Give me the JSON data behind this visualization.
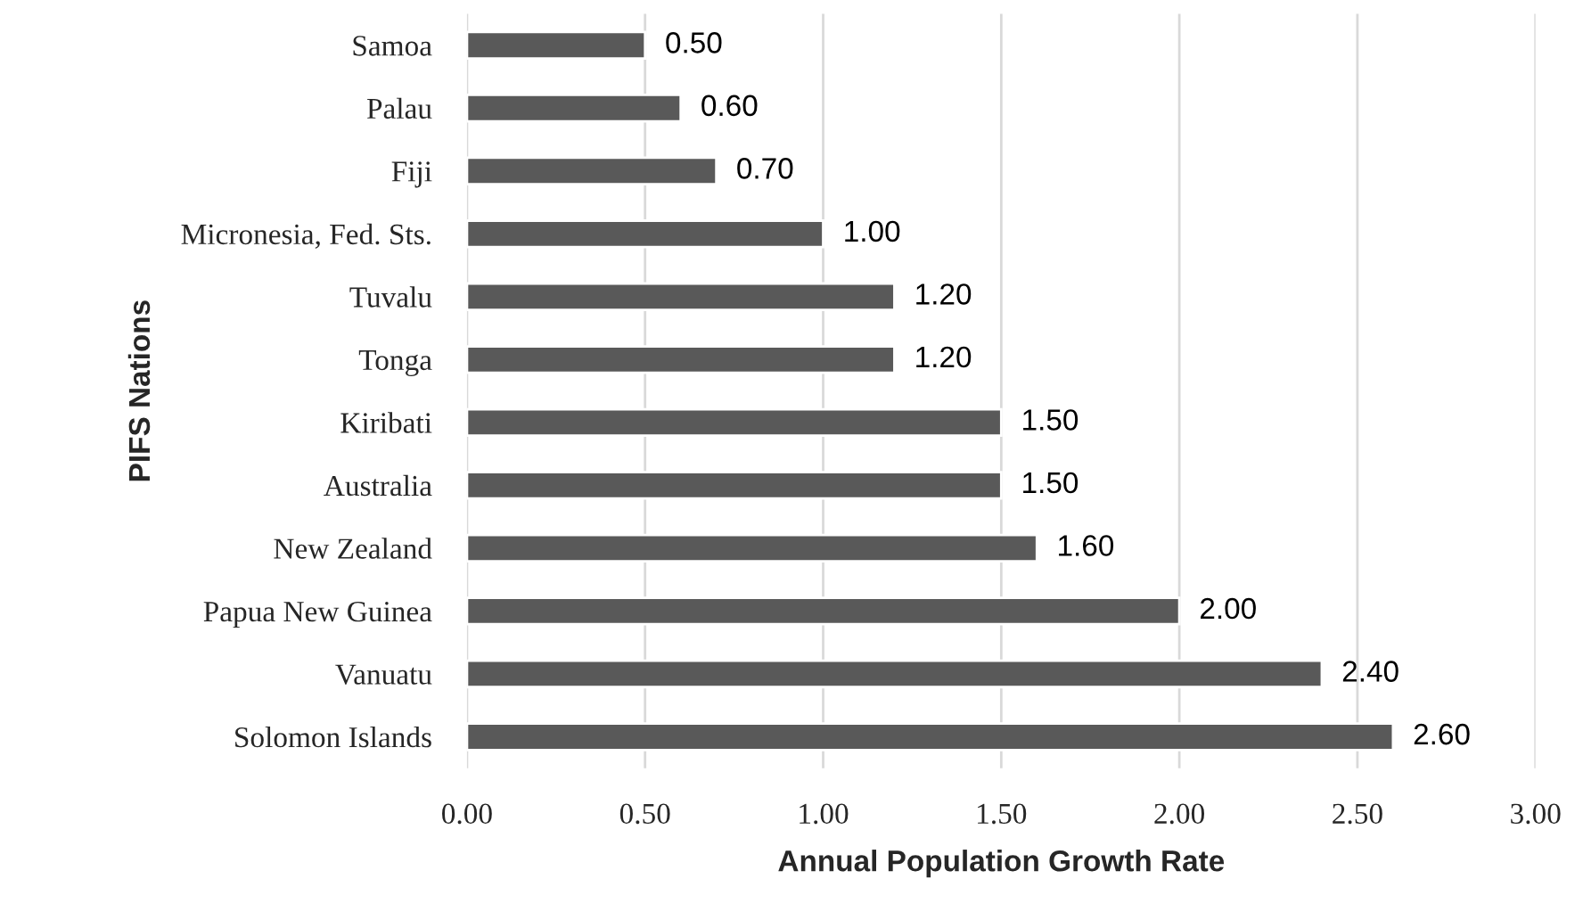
{
  "chart_data": {
    "type": "bar",
    "orientation": "horizontal",
    "xlabel": "Annual Population Growth Rate",
    "ylabel": "PIFS Nations",
    "categories": [
      "Samoa",
      "Palau",
      "Fiji",
      "Micronesia, Fed. Sts.",
      "Tuvalu",
      "Tonga",
      "Kiribati",
      "Australia",
      "New Zealand",
      "Papua New Guinea",
      "Vanuatu",
      "Solomon Islands"
    ],
    "values": [
      0.5,
      0.6,
      0.7,
      1.0,
      1.2,
      1.2,
      1.5,
      1.5,
      1.6,
      2.0,
      2.4,
      2.6
    ],
    "value_labels": [
      "0.50",
      "0.60",
      "0.70",
      "1.00",
      "1.20",
      "1.20",
      "1.50",
      "1.50",
      "1.60",
      "2.00",
      "2.40",
      "2.60"
    ],
    "color": "#595959",
    "xlim": [
      0,
      3
    ],
    "xticks": [
      {
        "value": 0,
        "label": "0.00"
      },
      {
        "value": 0.5,
        "label": "0.50"
      },
      {
        "value": 1,
        "label": "1.00"
      },
      {
        "value": 1.5,
        "label": "1.50"
      },
      {
        "value": 2,
        "label": "2.00"
      },
      {
        "value": 2.5,
        "label": "2.50"
      },
      {
        "value": 3,
        "label": "3.00"
      }
    ],
    "grid": "x",
    "legend": false
  }
}
